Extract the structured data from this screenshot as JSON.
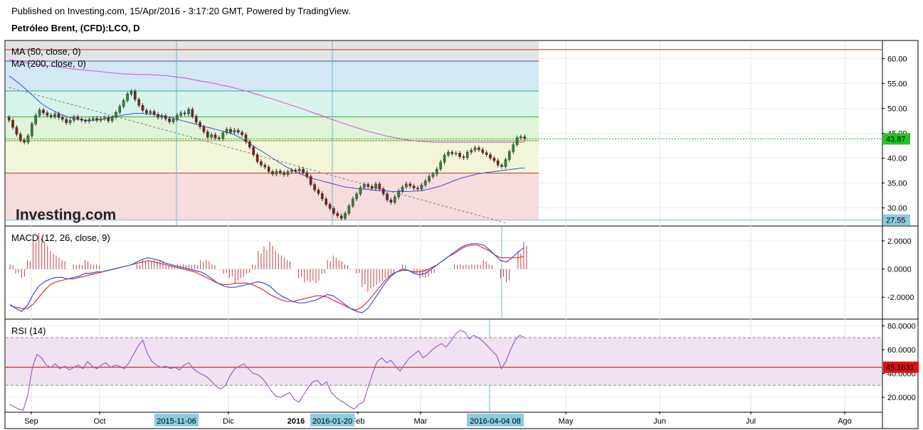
{
  "header": {
    "published": "Published on Investing.com, 15/Apr/2016 - 3:17:20 GMT, Powered by TradingView.",
    "symbol": "Petróleo Brent, (CFD):LCO, D"
  },
  "colors": {
    "up": "#2e8b2e",
    "down": "#8b1a1a",
    "ma50": "#3a4fd6",
    "ma200": "#d44fd4",
    "macd_line": "#3a4fd6",
    "signal_line": "#e03030",
    "hist": "#c04040",
    "rsi": "#a050c0",
    "crosshair": "#6ab8d0"
  },
  "chart_data": [
    {
      "type": "candlestick",
      "pane": "price",
      "legend": [
        "MA (50, close, 0)",
        "MA (200, close, 0)"
      ],
      "logo": "Investing.com",
      "ylim": [
        26.5,
        63.5
      ],
      "yticks": [
        "60.00",
        "55.00",
        "50.00",
        "45.00",
        "40.00",
        "35.00",
        "30.00"
      ],
      "last_price": "43.87",
      "crosshair_price": "27.55",
      "fib_levels": [
        61.8,
        59.5,
        53.5,
        48.3,
        43.5,
        37.0,
        27.55
      ],
      "fib_colors": [
        "#e4e4e4",
        "#d4e8f4",
        "#d6f4ec",
        "#e0f4d8",
        "#f2f6d8",
        "#f6dcdc"
      ],
      "fib_line_colors": [
        "#cc2222",
        "#2a5aa0",
        "#20b090",
        "#30b030",
        "#90a030",
        "#cc3030",
        "#7ac0d4"
      ],
      "close": [
        47.6,
        46.2,
        44.8,
        43.6,
        43.2,
        44.5,
        46.9,
        48.6,
        49.7,
        49.1,
        48.6,
        48.3,
        48.9,
        48.2,
        47.8,
        47.1,
        47.6,
        48.3,
        47.9,
        47.6,
        47.4,
        47.8,
        48.0,
        47.6,
        47.9,
        48.1,
        47.5,
        48.2,
        49.2,
        50.4,
        51.6,
        52.9,
        53.4,
        51.8,
        50.6,
        49.6,
        49.1,
        49.4,
        48.8,
        48.2,
        48.5,
        47.9,
        47.3,
        47.8,
        48.6,
        49.1,
        48.9,
        49.8,
        48.4,
        47.2,
        46.3,
        45.3,
        44.2,
        44.7,
        44.1,
        43.9,
        45.1,
        45.8,
        45.2,
        45.6,
        45.2,
        44.7,
        43.3,
        42.2,
        40.7,
        39.3,
        38.6,
        38.2,
        37.3,
        36.8,
        37.4,
        37.1,
        36.7,
        37.3,
        37.6,
        37.4,
        37.8,
        37.1,
        36.3,
        34.7,
        33.6,
        32.9,
        31.8,
        30.7,
        29.9,
        28.9,
        28.4,
        27.9,
        28.9,
        30.4,
        31.8,
        32.8,
        34.1,
        34.7,
        34.3,
        33.9,
        34.8,
        33.8,
        32.8,
        31.6,
        31.1,
        32.2,
        33.4,
        34.2,
        34.8,
        34.4,
        34.0,
        33.8,
        34.6,
        35.4,
        36.3,
        36.8,
        37.8,
        39.2,
        40.6,
        41.2,
        40.9,
        41.0,
        40.3,
        40.1,
        41.2,
        41.6,
        42.1,
        41.7,
        41.1,
        40.7,
        40.0,
        39.5,
        38.6,
        38.3,
        39.7,
        41.3,
        42.7,
        44.1,
        44.3,
        43.9
      ],
      "ma50": [
        56.5,
        56.0,
        55.4,
        54.8,
        54.1,
        53.4,
        52.7,
        52.0,
        51.3,
        50.7,
        50.2,
        49.8,
        49.4,
        49.0,
        48.7,
        48.4,
        48.2,
        48.0,
        47.8,
        47.7,
        47.6,
        47.6,
        47.6,
        47.7,
        47.8,
        47.9,
        48.1,
        48.2,
        48.4,
        48.5,
        48.7,
        48.8,
        48.9,
        49.0,
        49.0,
        49.0,
        48.9,
        48.9,
        48.8,
        48.7,
        48.5,
        48.4,
        48.2,
        48.0,
        47.8,
        47.6,
        47.4,
        47.2,
        47.0,
        46.8,
        46.6,
        46.4,
        46.2,
        46.0,
        45.8,
        45.6,
        45.4,
        45.2,
        45.0,
        44.7,
        44.3,
        43.9,
        43.4,
        42.9,
        42.4,
        41.9,
        41.5,
        41.0,
        40.5,
        40.0,
        39.5,
        39.0,
        38.5,
        38.1,
        37.7,
        37.3,
        36.9,
        36.6,
        36.3,
        36.0,
        35.8,
        35.6,
        35.4,
        35.2,
        35.0,
        34.8,
        34.6,
        34.4,
        34.2,
        34.1,
        34.0,
        33.9,
        33.8,
        33.8,
        33.7,
        33.6,
        33.5,
        33.5,
        33.4,
        33.4,
        33.3,
        33.3,
        33.3,
        33.3,
        33.3,
        33.3,
        33.4,
        33.4,
        33.5,
        33.6,
        33.8,
        34.0,
        34.2,
        34.4,
        34.7,
        35.0,
        35.3,
        35.6,
        35.9,
        36.1,
        36.3,
        36.5,
        36.7,
        36.9,
        37.0,
        37.1,
        37.2,
        37.3,
        37.4,
        37.5,
        37.6,
        37.7,
        37.8,
        37.9,
        38.0,
        38.0
      ],
      "ma200": [
        59.8,
        59.7,
        59.5,
        59.4,
        59.2,
        59.1,
        59.0,
        58.9,
        58.8,
        58.7,
        58.6,
        58.5,
        58.4,
        58.3,
        58.2,
        58.1,
        58.0,
        57.9,
        57.8,
        57.8,
        57.7,
        57.6,
        57.5,
        57.5,
        57.4,
        57.3,
        57.2,
        57.1,
        57.1,
        57.0,
        56.9,
        56.9,
        56.9,
        56.8,
        56.8,
        56.8,
        56.8,
        56.8,
        56.7,
        56.7,
        56.6,
        56.6,
        56.5,
        56.4,
        56.3,
        56.2,
        56.1,
        56.0,
        55.8,
        55.7,
        55.5,
        55.4,
        55.3,
        55.1,
        55.0,
        54.8,
        54.6,
        54.5,
        54.3,
        54.1,
        53.9,
        53.7,
        53.5,
        53.3,
        53.0,
        52.8,
        52.6,
        52.3,
        52.1,
        51.9,
        51.6,
        51.4,
        51.1,
        50.9,
        50.6,
        50.4,
        50.1,
        49.9,
        49.6,
        49.3,
        49.0,
        48.8,
        48.5,
        48.2,
        47.9,
        47.7,
        47.4,
        47.1,
        46.9,
        46.6,
        46.4,
        46.1,
        45.9,
        45.6,
        45.4,
        45.2,
        45.0,
        44.8,
        44.6,
        44.4,
        44.3,
        44.1,
        44.0,
        43.8,
        43.7,
        43.6,
        43.5,
        43.4,
        43.4,
        43.3,
        43.3,
        43.2,
        43.2,
        43.2,
        43.2,
        43.2,
        43.2,
        43.2,
        43.2,
        43.2,
        43.2,
        43.2,
        43.2,
        43.2,
        43.2,
        43.2,
        43.2,
        43.2,
        43.2,
        43.2,
        43.2,
        43.2,
        43.2,
        43.2,
        43.2,
        43.2
      ],
      "trendline": [
        [
          0,
          54.2
        ],
        [
          130,
          27.0
        ]
      ]
    },
    {
      "type": "line",
      "pane": "macd",
      "legend": "MACD (12, 26, close, 9)",
      "ylim": [
        -3.5,
        3.0
      ],
      "yticks": [
        "2.0000",
        "0.0000",
        "-2.0000"
      ],
      "macd": [
        -2.5,
        -2.8,
        -3.0,
        -2.6,
        -1.8,
        -1.2,
        -0.9,
        -0.7,
        -0.6,
        -0.6,
        -0.7,
        -0.6,
        -0.5,
        -0.3,
        -0.3,
        -0.2,
        -0.2,
        -0.1,
        0.0,
        0.1,
        0.2,
        0.3,
        0.5,
        0.7,
        0.8,
        0.7,
        0.6,
        0.4,
        0.3,
        0.2,
        0.1,
        0.0,
        -0.1,
        -0.2,
        -0.4,
        -0.7,
        -1.0,
        -1.2,
        -1.3,
        -1.3,
        -1.2,
        -1.1,
        -1.0,
        -0.9,
        -1.0,
        -1.2,
        -1.6,
        -1.9,
        -2.1,
        -2.3,
        -2.4,
        -2.4,
        -2.3,
        -2.2,
        -2.0,
        -1.8,
        -1.9,
        -2.2,
        -2.5,
        -2.8,
        -3.0,
        -3.1,
        -2.8,
        -2.2,
        -1.6,
        -1.0,
        -0.5,
        -0.2,
        0.0,
        -0.1,
        -0.3,
        -0.4,
        -0.3,
        0.0,
        0.3,
        0.6,
        0.9,
        1.2,
        1.5,
        1.7,
        1.8,
        1.8,
        1.7,
        1.4,
        1.0,
        0.6,
        0.5,
        0.8,
        1.2,
        1.5
      ],
      "signal": [
        -2.6,
        -2.7,
        -2.8,
        -2.8,
        -2.5,
        -2.0,
        -1.5,
        -1.1,
        -0.9,
        -0.8,
        -0.7,
        -0.7,
        -0.6,
        -0.5,
        -0.4,
        -0.3,
        -0.2,
        -0.1,
        0.0,
        0.1,
        0.2,
        0.3,
        0.4,
        0.5,
        0.6,
        0.5,
        0.4,
        0.3,
        0.2,
        0.1,
        0.0,
        -0.1,
        -0.2,
        -0.4,
        -0.6,
        -0.8,
        -1.0,
        -1.1,
        -1.1,
        -1.0,
        -1.0,
        -1.0,
        -1.1,
        -1.3,
        -1.5,
        -1.8,
        -2.0,
        -2.2,
        -2.3,
        -2.3,
        -2.2,
        -2.1,
        -2.0,
        -1.9,
        -1.9,
        -2.0,
        -2.2,
        -2.4,
        -2.6,
        -2.8,
        -2.9,
        -2.7,
        -2.3,
        -1.8,
        -1.3,
        -0.8,
        -0.4,
        -0.2,
        -0.1,
        -0.1,
        -0.2,
        -0.2,
        -0.1,
        0.1,
        0.3,
        0.6,
        0.9,
        1.1,
        1.4,
        1.6,
        1.7,
        1.7,
        1.5,
        1.3,
        1.0,
        0.8,
        0.8,
        0.8,
        0.8,
        0.9
      ]
    },
    {
      "type": "line",
      "pane": "rsi",
      "legend": "RSI (14)",
      "ylim": [
        8,
        85
      ],
      "yticks": [
        "80.0000",
        "60.0000",
        "40.0000",
        "20.0000"
      ],
      "band": [
        30,
        70
      ],
      "mid_line_value": 45.1631,
      "mid_line_label": "45.1631",
      "rsi": [
        14,
        12,
        10,
        9,
        22,
        45,
        56,
        53,
        47,
        45,
        48,
        44,
        46,
        43,
        45,
        47,
        44,
        50,
        46,
        44,
        47,
        49,
        45,
        47,
        46,
        44,
        49,
        56,
        63,
        68,
        57,
        50,
        47,
        45,
        46,
        44,
        45,
        43,
        47,
        49,
        44,
        41,
        39,
        37,
        33,
        29,
        27,
        30,
        38,
        44,
        46,
        48,
        44,
        40,
        39,
        36,
        31,
        25,
        21,
        20,
        22,
        24,
        18,
        16,
        22,
        28,
        33,
        34,
        30,
        33,
        24,
        20,
        17,
        15,
        12,
        10,
        14,
        16,
        28,
        40,
        50,
        53,
        49,
        51,
        46,
        42,
        48,
        53,
        56,
        59,
        53,
        56,
        60,
        63,
        65,
        62,
        67,
        73,
        76,
        75,
        69,
        72,
        70,
        67,
        63,
        59,
        55,
        44,
        50,
        60,
        68,
        72,
        70
      ]
    }
  ],
  "x_axis": {
    "labels": [
      "Sep",
      "Oct",
      "Dic",
      "Feb",
      "Mar",
      "May",
      "Jun",
      "Jul",
      "Ago"
    ],
    "year_label": "2016",
    "crosshair_labels": [
      "2015-11-06",
      "2016-01-20",
      "2016-04-04 08"
    ]
  }
}
